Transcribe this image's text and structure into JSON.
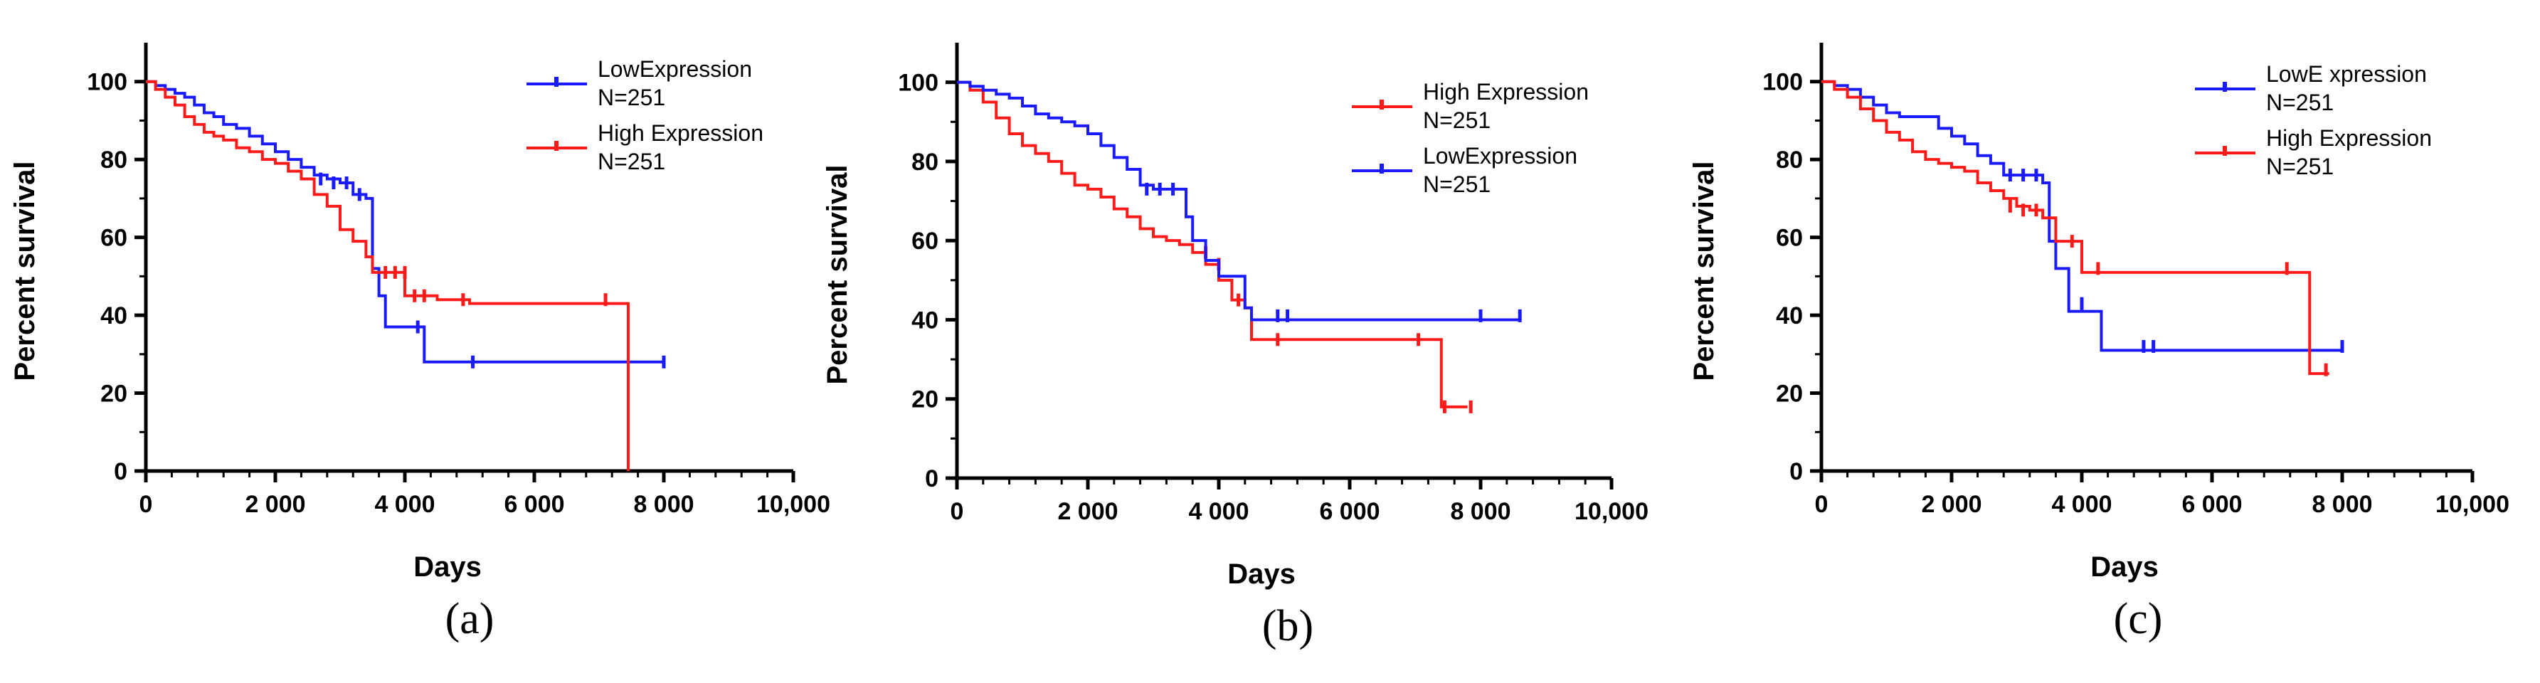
{
  "chart_data": [
    {
      "type": "line",
      "panel_label": "(a)",
      "xlabel": "Days",
      "ylabel": "Percent survival",
      "xlim": [
        0,
        10000
      ],
      "ylim": [
        0,
        110
      ],
      "x_ticks": [
        0,
        2000,
        4000,
        6000,
        8000,
        10000
      ],
      "x_tick_labels": [
        "0",
        "2 000",
        "4 000",
        "6 000",
        "8 000",
        "10,000"
      ],
      "y_ticks": [
        0,
        20,
        40,
        60,
        80,
        100
      ],
      "y_tick_labels": [
        "0",
        "20",
        "40",
        "60",
        "80",
        "100"
      ],
      "grid": false,
      "legend_position": "top-right",
      "legend": [
        {
          "text": "LowExpression",
          "count": "N=251",
          "color": "#1a1aff"
        },
        {
          "text": "High Expression",
          "count": "N=251",
          "color": "#ff1a1a"
        }
      ],
      "series": [
        {
          "color": "#1a1aff",
          "x": [
            0,
            150,
            300,
            450,
            600,
            750,
            900,
            1050,
            1200,
            1400,
            1600,
            1800,
            2000,
            2200,
            2400,
            2600,
            2800,
            3000,
            3200,
            3400,
            3500,
            3600,
            3700,
            4000,
            4300,
            5000,
            6000,
            8000
          ],
          "y": [
            100,
            99,
            98,
            97,
            96,
            94,
            92,
            91,
            89,
            88,
            86,
            84,
            82,
            80,
            78,
            76,
            75,
            74,
            71,
            70,
            52,
            45,
            37,
            37,
            28,
            28,
            28,
            28
          ],
          "censor_x": [
            2700,
            2900,
            3100,
            3300,
            4200,
            5050,
            8000
          ],
          "censor_y": [
            75,
            74,
            74,
            71,
            37,
            28,
            28
          ]
        },
        {
          "color": "#ff1a1a",
          "x": [
            0,
            150,
            300,
            450,
            600,
            750,
            900,
            1050,
            1200,
            1400,
            1600,
            1800,
            2000,
            2200,
            2400,
            2600,
            2800,
            3000,
            3200,
            3400,
            3500,
            3700,
            4000,
            4500,
            5000,
            6000,
            7000,
            7400,
            7450
          ],
          "y": [
            100,
            98,
            96,
            94,
            91,
            89,
            87,
            86,
            85,
            83,
            82,
            80,
            79,
            77,
            75,
            71,
            68,
            62,
            59,
            55,
            51,
            51,
            45,
            44,
            43,
            43,
            43,
            43,
            0
          ],
          "censor_x": [
            3700,
            3850,
            4000,
            4150,
            4300,
            4900,
            7100
          ],
          "censor_y": [
            51,
            51,
            51,
            45,
            45,
            44,
            44
          ]
        }
      ]
    },
    {
      "type": "line",
      "panel_label": "(b)",
      "xlabel": "Days",
      "ylabel": "Percent survival",
      "xlim": [
        0,
        10000
      ],
      "ylim": [
        0,
        110
      ],
      "x_ticks": [
        0,
        2000,
        4000,
        6000,
        8000,
        10000
      ],
      "x_tick_labels": [
        "0",
        "2 000",
        "4 000",
        "6 000",
        "8 000",
        "10,000"
      ],
      "y_ticks": [
        0,
        20,
        40,
        60,
        80,
        100
      ],
      "y_tick_labels": [
        "0",
        "20",
        "40",
        "60",
        "80",
        "100"
      ],
      "grid": false,
      "legend_position": "top-right",
      "legend": [
        {
          "text": "High Expression",
          "count": "N=251",
          "color": "#ff1a1a"
        },
        {
          "text": "LowExpression",
          "count": "N=251",
          "color": "#1a1aff"
        }
      ],
      "series": [
        {
          "color": "#ff1a1a",
          "x": [
            0,
            200,
            400,
            600,
            800,
            1000,
            1200,
            1400,
            1600,
            1800,
            2000,
            2200,
            2400,
            2600,
            2800,
            3000,
            3200,
            3400,
            3500,
            3600,
            3800,
            4000,
            4200,
            4400,
            4500,
            5000,
            6000,
            7000,
            7400,
            7800
          ],
          "y": [
            100,
            98,
            95,
            91,
            87,
            84,
            82,
            80,
            77,
            74,
            73,
            71,
            68,
            66,
            63,
            61,
            60,
            59,
            59,
            57,
            54,
            50,
            45,
            43,
            35,
            35,
            35,
            35,
            18,
            18
          ],
          "censor_x": [
            3800,
            4000,
            4300,
            4900,
            7050,
            7450,
            7850
          ],
          "censor_y": [
            57,
            54,
            45,
            35,
            35,
            18,
            18
          ]
        },
        {
          "color": "#1a1aff",
          "x": [
            0,
            200,
            400,
            600,
            800,
            1000,
            1200,
            1400,
            1600,
            1800,
            2000,
            2200,
            2400,
            2600,
            2800,
            3000,
            3200,
            3400,
            3500,
            3600,
            3800,
            4000,
            4200,
            4400,
            4500,
            5000,
            6000,
            7000,
            8000,
            8600
          ],
          "y": [
            100,
            99,
            98,
            97,
            96,
            94,
            92,
            91,
            90,
            89,
            87,
            84,
            81,
            78,
            74,
            73,
            73,
            73,
            66,
            60,
            55,
            51,
            51,
            43,
            40,
            40,
            40,
            40,
            40,
            40
          ],
          "censor_x": [
            2900,
            3100,
            3300,
            4900,
            5050,
            8000,
            8600
          ],
          "censor_y": [
            73,
            73,
            73,
            41,
            41,
            41,
            41
          ]
        }
      ]
    },
    {
      "type": "line",
      "panel_label": "(c)",
      "xlabel": "Days",
      "ylabel": "Percent survival",
      "xlim": [
        0,
        10000
      ],
      "ylim": [
        0,
        110
      ],
      "x_ticks": [
        0,
        2000,
        4000,
        6000,
        8000,
        10000
      ],
      "x_tick_labels": [
        "0",
        "2 000",
        "4 000",
        "6 000",
        "8 000",
        "10,000"
      ],
      "y_ticks": [
        0,
        20,
        40,
        60,
        80,
        100
      ],
      "y_tick_labels": [
        "0",
        "20",
        "40",
        "60",
        "80",
        "100"
      ],
      "grid": false,
      "legend_position": "top-right",
      "legend": [
        {
          "text": "LowE xpression",
          "count": "N=251",
          "color": "#1a1aff"
        },
        {
          "text": "High Expression",
          "count": "N=251",
          "color": "#ff1a1a"
        }
      ],
      "series": [
        {
          "color": "#1a1aff",
          "x": [
            0,
            200,
            400,
            600,
            800,
            1000,
            1200,
            1400,
            1600,
            1800,
            2000,
            2200,
            2400,
            2600,
            2800,
            3000,
            3200,
            3400,
            3500,
            3600,
            3800,
            4000,
            4200,
            4300,
            5000,
            6000,
            7000,
            8000
          ],
          "y": [
            100,
            99,
            98,
            96,
            94,
            92,
            91,
            91,
            91,
            88,
            86,
            84,
            81,
            79,
            76,
            76,
            76,
            74,
            59,
            52,
            41,
            41,
            41,
            31,
            31,
            31,
            31,
            31
          ],
          "censor_x": [
            2900,
            3100,
            3300,
            4000,
            4950,
            5100,
            8000
          ],
          "censor_y": [
            76,
            76,
            76,
            43,
            32,
            32,
            32
          ]
        },
        {
          "color": "#ff1a1a",
          "x": [
            0,
            200,
            400,
            600,
            800,
            1000,
            1200,
            1400,
            1600,
            1800,
            2000,
            2200,
            2400,
            2600,
            2800,
            3000,
            3200,
            3400,
            3600,
            3800,
            4000,
            4300,
            5000,
            6000,
            7000,
            7400,
            7500,
            7800
          ],
          "y": [
            100,
            98,
            96,
            93,
            90,
            87,
            85,
            82,
            80,
            79,
            78,
            77,
            74,
            72,
            70,
            68,
            67,
            65,
            59,
            59,
            51,
            51,
            51,
            51,
            51,
            51,
            25,
            25
          ],
          "censor_x": [
            2900,
            3100,
            3300,
            3850,
            4250,
            7150,
            7750
          ],
          "censor_y": [
            68,
            67,
            67,
            59,
            52,
            52,
            26
          ]
        }
      ]
    }
  ]
}
